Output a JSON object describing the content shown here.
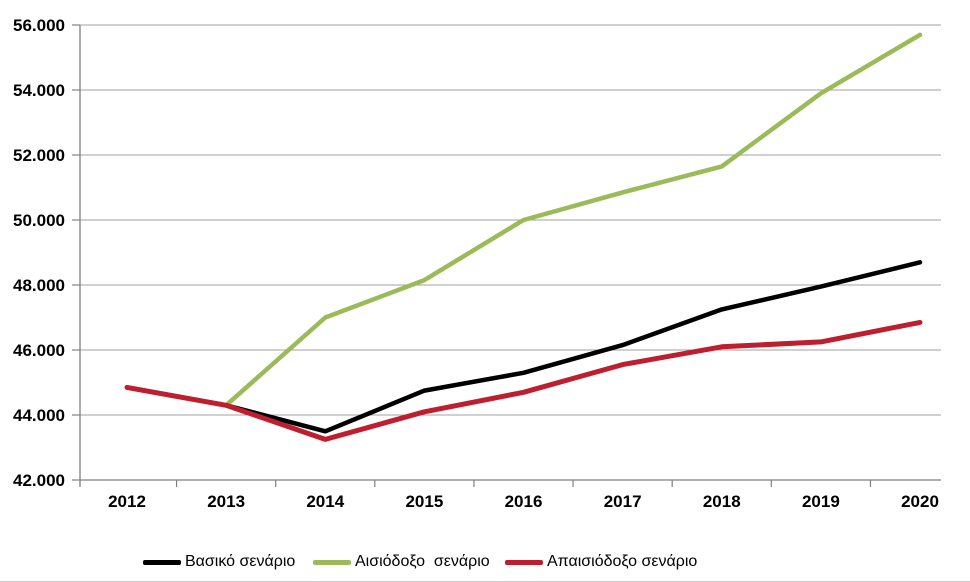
{
  "chart_data": {
    "type": "line",
    "categories": [
      "2012",
      "2013",
      "2014",
      "2015",
      "2016",
      "2017",
      "2018",
      "2019",
      "2020"
    ],
    "series": [
      {
        "name": "Βασικό σενάριο",
        "color": "#000000",
        "width": 4.5,
        "values": [
          44850,
          44300,
          43500,
          44750,
          45300,
          46150,
          47250,
          47950,
          48700
        ]
      },
      {
        "name": "Αισιόδοξο  σενάριο",
        "color": "#9BBB59",
        "width": 4.5,
        "values": [
          44850,
          44300,
          47000,
          48150,
          50000,
          50850,
          51650,
          53900,
          55700
        ]
      },
      {
        "name": "Απαισιόδοξο σενάριο",
        "color": "#BE1E2D",
        "width": 5,
        "values": [
          44850,
          44300,
          43250,
          44100,
          44700,
          45550,
          46100,
          46250,
          46850
        ]
      }
    ],
    "title": "",
    "xlabel": "",
    "ylabel": "",
    "ylim": [
      42000,
      56000
    ],
    "ytick_step": 2000,
    "ytick_labels": [
      "42.000",
      "44.000",
      "46.000",
      "48.000",
      "50.000",
      "52.000",
      "54.000",
      "56.000"
    ],
    "grid": "horizontal-only",
    "legend_position": "bottom"
  },
  "style": {
    "grid_color": "#A0A0A0",
    "axis_color": "#808080",
    "text_color": "#000000"
  },
  "legend": {
    "items": [
      {
        "label": "Βασικό σενάριο",
        "color": "#000000",
        "x": 143
      },
      {
        "label": "Αισιόδοξο  σενάριο",
        "color": "#9BBB59",
        "x": 313
      },
      {
        "label": "Απαισιόδοξο σενάριο",
        "color": "#BE1E2D",
        "x": 505
      }
    ]
  }
}
